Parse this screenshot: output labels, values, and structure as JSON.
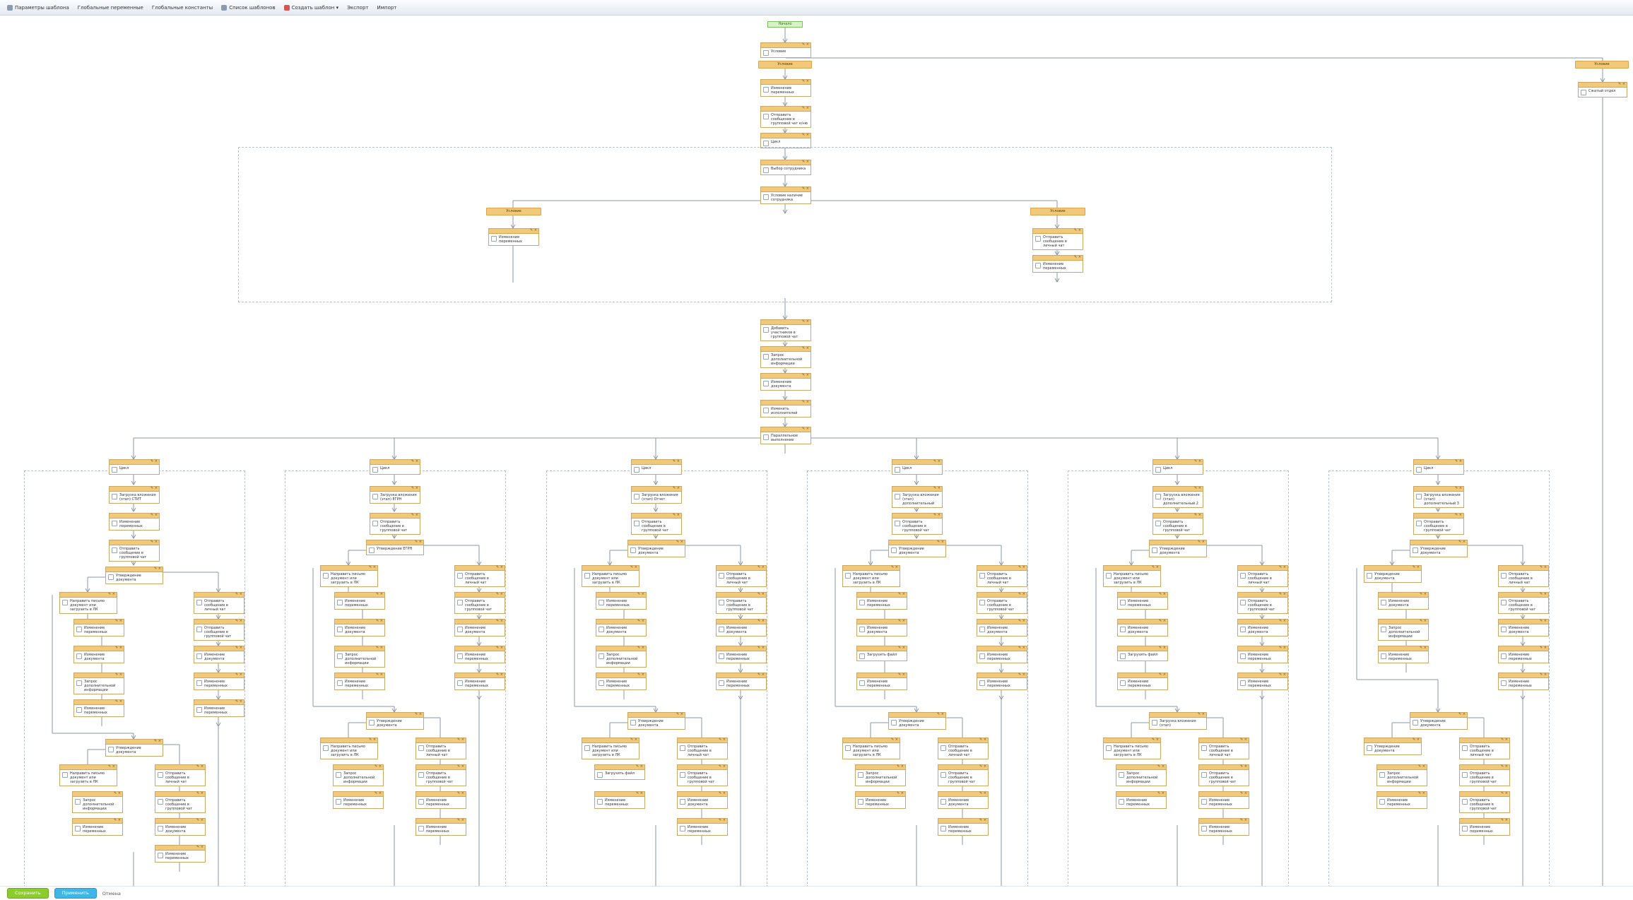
{
  "toolbar": {
    "items": [
      {
        "label": "Параметры шаблона",
        "icon": "settings-icon",
        "color": "#8a9bb0"
      },
      {
        "label": "Глобальные переменные",
        "icon": "",
        "color": ""
      },
      {
        "label": "Глобальные константы",
        "icon": "",
        "color": ""
      },
      {
        "label": "Список шаблонов",
        "icon": "list-icon",
        "color": "#8a9bb0"
      },
      {
        "label": "Создать шаблон ▾",
        "icon": "new-template-icon",
        "color": "#d9534f"
      },
      {
        "label": "Экспорт",
        "icon": "",
        "color": ""
      },
      {
        "label": "Импорт",
        "icon": "",
        "color": ""
      }
    ]
  },
  "footer": {
    "save": "Сохранить",
    "apply": "Применить",
    "cancel": "Отмена"
  },
  "flow": {
    "start": "Начало",
    "top_condition": "Условие",
    "branch_left": "Условие",
    "branch_right": "Условие",
    "right_block": "Сжатый отдел",
    "main_chain": [
      "Изменение переменных",
      "Отправить сообщение в групповой чат к/ню",
      "Цикл",
      "Выбор сотрудника",
      "Условие наличие сотрудника"
    ],
    "loop_branch_left": "Условие",
    "loop_branch_right": "Условие",
    "loop_left_action": "Изменение переменных",
    "loop_right_actions": [
      "Отправить сообщение в личный чат",
      "Изменение переменных"
    ],
    "after_chain": [
      "Добавить участников в групповой чат",
      "Запрос дополнительной информации",
      "Изменение документа",
      "Изменить исполнителей",
      "Параллельное выполнение"
    ],
    "columns": [
      {
        "items": [
          "Цикл",
          "Загрузка вложения (этап) СТИТ",
          "Изменение переменных",
          "Отправить сообщение в групповой чат"
        ],
        "cond": "Утверждение документа",
        "left": [
          "Направить письмо документ или загрузить в ЛК",
          "Изменение переменных",
          "Изменение документа",
          "Запрос дополнительной информации",
          "Изменение переменных"
        ],
        "right": [
          "Отправить сообщение в личный чат",
          "Отправить сообщение в групповой чат",
          "Изменение документа",
          "Изменение переменных",
          "Изменение переменных"
        ],
        "cond2": "Утверждение документа",
        "left2": [
          "Направить письмо документ или загрузить в ЛК",
          "Запрос дополнительной информации",
          "Изменение переменных"
        ],
        "right2": [
          "Отправить сообщение в личный чат",
          "Отправить сообщение в групповой чат",
          "Изменение документа",
          "Изменение переменных"
        ]
      },
      {
        "items": [
          "Цикл",
          "Загрузка вложения (этап) ЕГРН",
          "Отправить сообщение в групповой чат"
        ],
        "cond": "Утверждение ЕГРН",
        "left": [
          "Направить письмо документ или загрузить в ЛК",
          "Изменение переменных",
          "Изменение документа",
          "Запрос дополнительной информации",
          "Изменение переменных"
        ],
        "right": [
          "Отправить сообщение в личный чат",
          "Отправить сообщение в групповой чат",
          "Изменение документа",
          "Изменение переменных",
          "Изменение переменных"
        ],
        "cond2": "Утверждение документа",
        "left2": [
          "Направить письмо документ или загрузить в ЛК",
          "Запрос дополнительной информации",
          "Изменение переменных"
        ],
        "right2": [
          "Отправить сообщение в личный чат",
          "Отправить сообщение в групповой чат",
          "Изменение переменных",
          "Изменение переменных"
        ]
      },
      {
        "items": [
          "Цикл",
          "Загрузка вложения (этап) Отчет",
          "Отправить сообщение в групповой чат"
        ],
        "cond": "Утверждение документа",
        "left": [
          "Направить письмо документ или загрузить в ЛК",
          "Изменение переменных",
          "Изменение документа",
          "Запрос дополнительной информации",
          "Изменение переменных"
        ],
        "right": [
          "Отправить сообщение в личный чат",
          "Отправить сообщение в групповой чат",
          "Изменение документа",
          "Изменение переменных",
          "Изменение переменных"
        ],
        "cond2": "Утверждение документа",
        "left2": [
          "Направить письмо документ или загрузить в ЛК",
          "Загрузить файл",
          "Изменение переменных"
        ],
        "right2": [
          "Отправить сообщение в личный чат",
          "Отправить сообщение в групповой чат",
          "Изменение документа",
          "Изменение переменных"
        ]
      },
      {
        "items": [
          "Цикл",
          "Загрузка вложения (этап) дополнительный",
          "Отправить сообщение в групповой чат"
        ],
        "cond": "Утверждение документа",
        "left": [
          "Направить письмо документ или загрузить в ЛК",
          "Изменение переменных",
          "Изменение документа",
          "Загрузить файл",
          "Изменение переменных"
        ],
        "right": [
          "Отправить сообщение в личный чат",
          "Отправить сообщение в групповой чат",
          "Изменение документа",
          "Изменение переменных",
          "Изменение переменных"
        ],
        "cond2": "Утверждение документа",
        "left2": [
          "Направить письмо документ или загрузить в ЛК",
          "Запрос дополнительной информации",
          "Изменение переменных"
        ],
        "right2": [
          "Отправить сообщение в личный чат",
          "Отправить сообщение в групповой чат",
          "Изменение документа",
          "Изменение переменных"
        ]
      },
      {
        "items": [
          "Цикл",
          "Загрузка вложения (этап) дополнительный 2",
          "Отправить сообщение в групповой чат"
        ],
        "cond": "Утверждение документа",
        "left": [
          "Направить письмо документ или загрузить в ЛК",
          "Изменение переменных",
          "Изменение документа",
          "Загрузить файл",
          "Изменение переменных"
        ],
        "right": [
          "Отправить сообщение в личный чат",
          "Отправить сообщение в групповой чат",
          "Изменение документа",
          "Изменение переменных",
          "Изменение переменных"
        ],
        "cond2": "Загрузка вложения (этап)",
        "left2": [
          "Направить письмо документ или загрузить в ЛК",
          "Запрос дополнительной информации",
          "Изменение переменных"
        ],
        "right2": [
          "Отправить сообщение в личный чат",
          "Отправить сообщение в групповой чат",
          "Изменение переменных",
          "Изменение переменных"
        ]
      },
      {
        "items": [
          "Цикл",
          "Загрузка вложения (этап) дополнительный 3",
          "Отправить сообщение в групповой чат"
        ],
        "cond": "Утверждение документа",
        "left": [
          "Утверждение документа",
          "Изменение документа",
          "Запрос дополнительной информации",
          "Изменение переменных"
        ],
        "right": [
          "Отправить сообщение в личный чат",
          "Отправить сообщение в групповой чат",
          "Изменение документа",
          "Изменение переменных",
          "Изменение переменных"
        ],
        "cond2": "Утверждение документа",
        "left2": [
          "Утверждение документа",
          "Запрос дополнительной информации",
          "Изменение переменных"
        ],
        "right2": [
          "Отправить сообщение в личный чат",
          "Отправить сообщение в групповой чат",
          "Отправить сообщение в групповой чат",
          "Изменение переменных"
        ]
      }
    ]
  }
}
